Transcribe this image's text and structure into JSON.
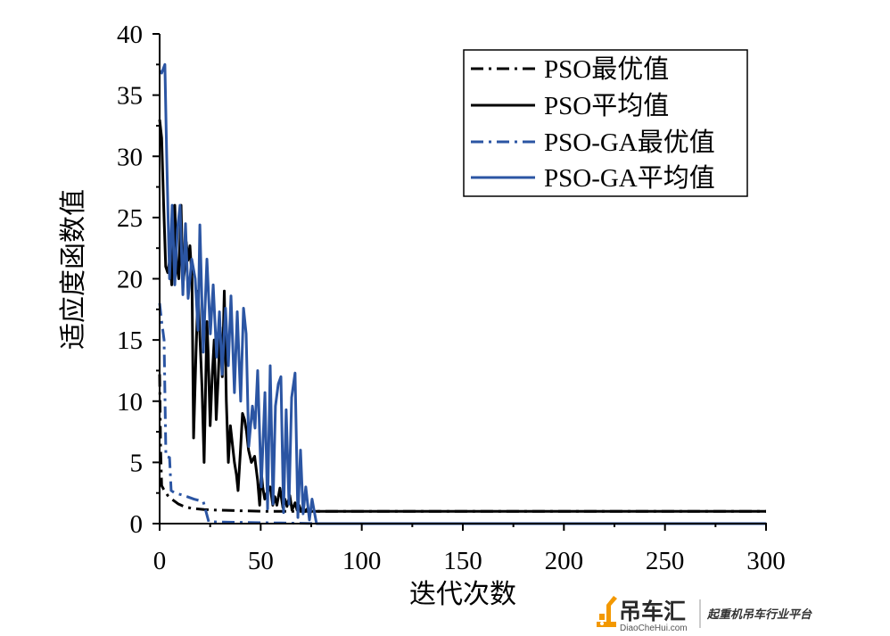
{
  "chart_data": {
    "type": "line",
    "xlabel": "迭代次数",
    "ylabel": "适应度函数值",
    "xlim": [
      0,
      300
    ],
    "ylim": [
      0,
      40
    ],
    "xticks": [
      0,
      50,
      100,
      150,
      200,
      250,
      300
    ],
    "yticks": [
      0,
      5,
      10,
      15,
      20,
      25,
      30,
      35,
      40
    ],
    "grid": false,
    "legend_position": "top-right",
    "series": [
      {
        "name": "PSO最优值",
        "color": "#000000",
        "line_style": "dash-dot",
        "points": [
          [
            0,
            12.2
          ],
          [
            0.5,
            6
          ],
          [
            1,
            3.1
          ],
          [
            2,
            2.8
          ],
          [
            4,
            2.3
          ],
          [
            6,
            2.0
          ],
          [
            9.3,
            1.6
          ],
          [
            12,
            1.4
          ],
          [
            15.9,
            1.24
          ],
          [
            22,
            1.15
          ],
          [
            29,
            1.1
          ],
          [
            40,
            1.05
          ],
          [
            53,
            1.0
          ],
          [
            300,
            1.0
          ]
        ]
      },
      {
        "name": "PSO平均值",
        "color": "#000000",
        "line_style": "solid",
        "points": [
          [
            0,
            33
          ],
          [
            1,
            31.5
          ],
          [
            2,
            26
          ],
          [
            3,
            21
          ],
          [
            4,
            20.5
          ],
          [
            5,
            21.5
          ],
          [
            6,
            19.5
          ],
          [
            7,
            24
          ],
          [
            7.5,
            26
          ],
          [
            8.5,
            21
          ],
          [
            9.5,
            20
          ],
          [
            10.6,
            26
          ],
          [
            11.5,
            19.5
          ],
          [
            12.5,
            21
          ],
          [
            13.2,
            23
          ],
          [
            14,
            21.5
          ],
          [
            15,
            22.7
          ],
          [
            16,
            20
          ],
          [
            16.8,
            7
          ],
          [
            18,
            14
          ],
          [
            19,
            19
          ],
          [
            20,
            15
          ],
          [
            21,
            11
          ],
          [
            22,
            5
          ],
          [
            23.4,
            16.5
          ],
          [
            24,
            14
          ],
          [
            25,
            8
          ],
          [
            26,
            12
          ],
          [
            27,
            15
          ],
          [
            28,
            8.5
          ],
          [
            29,
            12
          ],
          [
            30,
            16
          ],
          [
            31,
            12
          ],
          [
            32,
            19
          ],
          [
            33,
            10
          ],
          [
            34,
            5
          ],
          [
            35,
            8
          ],
          [
            36,
            6.5
          ],
          [
            37,
            5
          ],
          [
            38,
            4
          ],
          [
            38.8,
            2.7
          ],
          [
            40,
            6
          ],
          [
            41,
            9
          ],
          [
            42,
            8.5
          ],
          [
            43,
            7.5
          ],
          [
            44,
            6
          ],
          [
            45.4,
            5
          ],
          [
            47,
            5.5
          ],
          [
            48.5,
            3.5
          ],
          [
            49.5,
            1.5
          ],
          [
            50.3,
            4.2
          ],
          [
            51,
            3
          ],
          [
            52,
            2
          ],
          [
            53,
            2.5
          ],
          [
            54.7,
            3
          ],
          [
            56,
            1.5
          ],
          [
            57,
            2.2
          ],
          [
            58,
            1.5
          ],
          [
            59.5,
            2.9
          ],
          [
            61,
            1.3
          ],
          [
            62,
            2
          ],
          [
            63,
            1.4
          ],
          [
            64.4,
            2.3
          ],
          [
            65.5,
            1.1
          ],
          [
            67,
            1.7
          ],
          [
            68,
            1.1
          ],
          [
            69,
            1.5
          ],
          [
            70,
            1
          ],
          [
            71,
            1.3
          ],
          [
            72,
            1
          ],
          [
            73,
            1.2
          ],
          [
            75,
            1
          ],
          [
            300,
            1
          ]
        ]
      },
      {
        "name": "PSO-GA最优值",
        "color": "#2b55a3",
        "line_style": "dash-dot",
        "points": [
          [
            0,
            18
          ],
          [
            1,
            16.5
          ],
          [
            2.2,
            15
          ],
          [
            3.1,
            5.5
          ],
          [
            4.9,
            5.4
          ],
          [
            5.7,
            2.7
          ],
          [
            7.5,
            2.5
          ],
          [
            12,
            2.3
          ],
          [
            17,
            2.0
          ],
          [
            21.6,
            1.8
          ],
          [
            24.3,
            0.15
          ],
          [
            40,
            0.1
          ],
          [
            60,
            0.05
          ],
          [
            78,
            0
          ],
          [
            300,
            0
          ]
        ]
      },
      {
        "name": "PSO-GA平均值",
        "color": "#2b55a3",
        "line_style": "solid",
        "points": [
          [
            0,
            37
          ],
          [
            1,
            36.8
          ],
          [
            2.6,
            37.5
          ],
          [
            3.5,
            30
          ],
          [
            4.9,
            20
          ],
          [
            6.2,
            26
          ],
          [
            7.5,
            19.5
          ],
          [
            8.8,
            24
          ],
          [
            10.1,
            26
          ],
          [
            11.5,
            18.7
          ],
          [
            12.8,
            24.5
          ],
          [
            14.1,
            18.4
          ],
          [
            15.9,
            21.6
          ],
          [
            17.6,
            20
          ],
          [
            19,
            15.8
          ],
          [
            19.9,
            24.4
          ],
          [
            21.6,
            14
          ],
          [
            23.4,
            21.6
          ],
          [
            25.1,
            15.5
          ],
          [
            26.5,
            19.5
          ],
          [
            28.2,
            13.6
          ],
          [
            29.6,
            17.3
          ],
          [
            30.9,
            12.2
          ],
          [
            32.6,
            17.6
          ],
          [
            34,
            12.9
          ],
          [
            35.3,
            18.6
          ],
          [
            37,
            10.7
          ],
          [
            38.4,
            17.3
          ],
          [
            40.1,
            10
          ],
          [
            41.5,
            17.6
          ],
          [
            42.8,
            15.5
          ],
          [
            44.1,
            6.3
          ],
          [
            45.9,
            9.6
          ],
          [
            47.2,
            7.8
          ],
          [
            48.5,
            12.5
          ],
          [
            50.3,
            3
          ],
          [
            52.1,
            10.7
          ],
          [
            53.4,
            1.2
          ],
          [
            54.7,
            12.9
          ],
          [
            56.1,
            1.6
          ],
          [
            57.3,
            9.6
          ],
          [
            58.7,
            11.4
          ],
          [
            60,
            12
          ],
          [
            61.3,
            0.9
          ],
          [
            62.6,
            9.3
          ],
          [
            64,
            1.6
          ],
          [
            65.3,
            10.3
          ],
          [
            67,
            12.3
          ],
          [
            68.4,
            0.5
          ],
          [
            69.7,
            6
          ],
          [
            71,
            0.8
          ],
          [
            72.3,
            3
          ],
          [
            74.1,
            0.3
          ],
          [
            75.4,
            2
          ],
          [
            77.6,
            0
          ],
          [
            300,
            0
          ]
        ]
      }
    ]
  },
  "watermark": {
    "brand": "吊车汇",
    "site": "DiaoCheHui.com",
    "slogan": "起重机吊车行业平台",
    "accent_color": "#f39800",
    "icon": "crane-icon"
  }
}
